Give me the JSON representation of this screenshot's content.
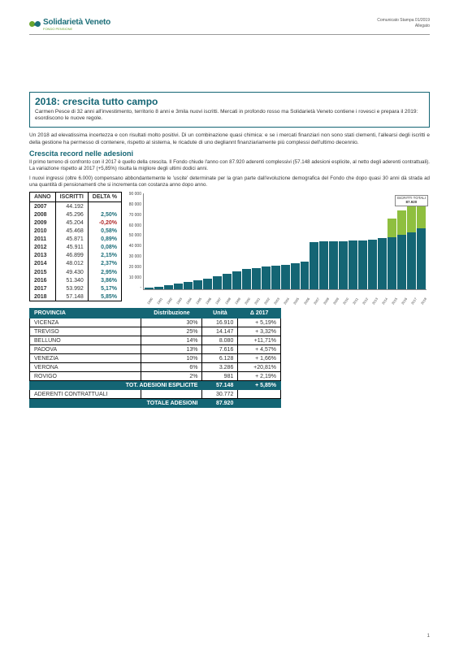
{
  "logo": {
    "name": "Solidarietà Veneto",
    "sub": "FONDO PENSIONE"
  },
  "doc_meta": {
    "line1": "Comunicato Stampa 01/2019",
    "line2": "Allegato"
  },
  "title_box": {
    "heading": "2018: crescita tutto campo",
    "sub": "Carmen Pesce di 32 anni all'investimento, territorio 8 anni e 3mila nuovi iscritti. Mercati in profondo rosso ma Solidarietà Veneto contiene i rovesci e prepara il 2019: esordiscono le nuove regole."
  },
  "intro": "Un 2018 ad elevatissima incertezza e con risultati molto positivi. Di un combinazione quasi chimica: e se i mercati finanziari non sono stati clementi, l'allearsi degli iscritti e della gestione ha permesso di contenere, rispetto al sistema, le ricadute di uno degliannt finanziariamente più complessi dell'ultimo decennio.",
  "section1": {
    "heading": "Crescita record nelle adesioni",
    "p1": "Il primo terreno di confronto con il 2017 è quello della crescita. Il Fondo chiude l'anno con 87.920 aderenti complessivi (57.148 adesioni esplicite, al netto degli aderenti contrattuali). La variazione rispetto al 2017 (+5,85%) risulta la migliore degli ultimi dodici anni.",
    "p2": "I nuovi ingressi (oltre 6.000) compensano abbondantemente le 'uscite' determinate per la gran parte dall'evoluzione demografica del Fondo che dopo quasi 30 anni dà strada ad una quantità di pensionamenti che si incrementa con costanza anno dopo anno."
  },
  "year_table": {
    "headers": [
      "ANNO",
      "ISCRITTI",
      "DELTA %"
    ],
    "rows": [
      {
        "anno": "2007",
        "iscritti": "44.192",
        "delta": ""
      },
      {
        "anno": "2008",
        "iscritti": "45.296",
        "delta": "2,50%",
        "neg": false
      },
      {
        "anno": "2009",
        "iscritti": "45.204",
        "delta": "-0,20%",
        "neg": true
      },
      {
        "anno": "2010",
        "iscritti": "45.468",
        "delta": "0,58%",
        "neg": false
      },
      {
        "anno": "2011",
        "iscritti": "45.871",
        "delta": "0,89%",
        "neg": false
      },
      {
        "anno": "2012",
        "iscritti": "45.911",
        "delta": "0,08%",
        "neg": false
      },
      {
        "anno": "2013",
        "iscritti": "46.899",
        "delta": "2,15%",
        "neg": false
      },
      {
        "anno": "2014",
        "iscritti": "48.012",
        "delta": "2,37%",
        "neg": false
      },
      {
        "anno": "2015",
        "iscritti": "49.430",
        "delta": "2,95%",
        "neg": false
      },
      {
        "anno": "2016",
        "iscritti": "51.340",
        "delta": "3,86%",
        "neg": false
      },
      {
        "anno": "2017",
        "iscritti": "53.992",
        "delta": "5,17%",
        "neg": false
      },
      {
        "anno": "2018",
        "iscritti": "57.148",
        "delta": "5,85%",
        "neg": false
      }
    ]
  },
  "chart": {
    "ymax": 90000,
    "yticks": [
      "90 000",
      "80 000",
      "70 000",
      "60 000",
      "50 000",
      "40 000",
      "30 000",
      "20 000",
      "10 000",
      "-"
    ],
    "callout": {
      "l1": "ISCRITTI TOTALI",
      "l2": "87.920"
    },
    "bars": [
      {
        "x": "1990",
        "v": 1500,
        "t": 0
      },
      {
        "x": "1991",
        "v": 2500,
        "t": 0
      },
      {
        "x": "1992",
        "v": 4000,
        "t": 0
      },
      {
        "x": "1993",
        "v": 5500,
        "t": 0
      },
      {
        "x": "1994",
        "v": 7000,
        "t": 0
      },
      {
        "x": "1995",
        "v": 8500,
        "t": 0
      },
      {
        "x": "1996",
        "v": 10500,
        "t": 0
      },
      {
        "x": "1997",
        "v": 12500,
        "t": 0
      },
      {
        "x": "1998",
        "v": 14500,
        "t": 0
      },
      {
        "x": "1999",
        "v": 17000,
        "t": 0
      },
      {
        "x": "2000",
        "v": 19000,
        "t": 0
      },
      {
        "x": "2001",
        "v": 20500,
        "t": 0
      },
      {
        "x": "2002",
        "v": 21500,
        "t": 0
      },
      {
        "x": "2003",
        "v": 22500,
        "t": 0
      },
      {
        "x": "2004",
        "v": 23500,
        "t": 0
      },
      {
        "x": "2005",
        "v": 24500,
        "t": 0
      },
      {
        "x": "2006",
        "v": 26000,
        "t": 0
      },
      {
        "x": "2007",
        "v": 44192,
        "t": 0
      },
      {
        "x": "2008",
        "v": 45296,
        "t": 0
      },
      {
        "x": "2009",
        "v": 45204,
        "t": 0
      },
      {
        "x": "2010",
        "v": 45468,
        "t": 0
      },
      {
        "x": "2011",
        "v": 45871,
        "t": 0
      },
      {
        "x": "2012",
        "v": 45911,
        "t": 0
      },
      {
        "x": "2013",
        "v": 46899,
        "t": 0
      },
      {
        "x": "2014",
        "v": 48012,
        "t": 0
      },
      {
        "x": "2015",
        "v": 49430,
        "t": 17000
      },
      {
        "x": "2016",
        "v": 51340,
        "t": 23000
      },
      {
        "x": "2017",
        "v": 53992,
        "t": 28000
      },
      {
        "x": "2018",
        "v": 57148,
        "t": 30772
      }
    ],
    "bar_color": "#146574",
    "top_color": "#8fbf3f"
  },
  "prov_table": {
    "headers": [
      "PROVINCIA",
      "Distribuzione",
      "Unità",
      "Δ 2017"
    ],
    "rows": [
      [
        "VICENZA",
        "30%",
        "16.910",
        "+ 5,19%"
      ],
      [
        "TREVISO",
        "25%",
        "14.147",
        "+ 3,32%"
      ],
      [
        "BELLUNO",
        "14%",
        "8.080",
        "+11,71%"
      ],
      [
        "PADOVA",
        "13%",
        "7.616",
        "+ 4,57%"
      ],
      [
        "VENEZIA",
        "10%",
        "6.128",
        "+ 1,66%"
      ],
      [
        "VERONA",
        "6%",
        "3.286",
        "+20,81%"
      ],
      [
        "ROVIGO",
        "2%",
        "981",
        "+ 2,19%"
      ]
    ],
    "tot1": [
      "TOT. ADESIONI ESPLICITE",
      "",
      "57.148",
      "+ 5,85%"
    ],
    "mid": [
      "ADERENTI CONTRATTUALI",
      "",
      "30.772",
      ""
    ],
    "tot2": [
      "TOTALE ADESIONI",
      "",
      "87.920",
      ""
    ]
  },
  "page": "1"
}
